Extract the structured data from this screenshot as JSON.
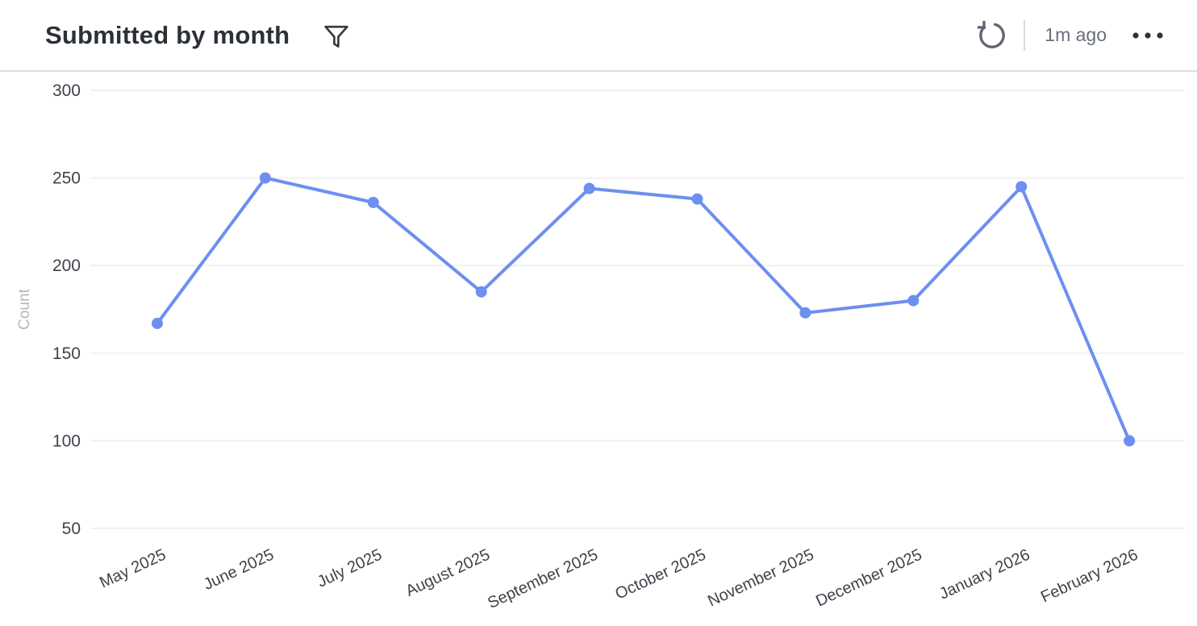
{
  "header": {
    "title": "Submitted by month",
    "refresh_time": "1m ago"
  },
  "colors": {
    "line": "#6c8ff0",
    "point": "#6c8ff0",
    "gridline": "#f1f1f4",
    "tick_label": "#3f434a",
    "axis_title": "#b2b6bf",
    "title_text": "#2c3037",
    "muted_text": "#6a6f7d",
    "icon_dark": "#33373e",
    "icon_gray": "#5f6573",
    "header_divider": "#dcdfe6"
  },
  "chart_data": {
    "type": "line",
    "title": "Submitted by month",
    "categories": [
      "May 2025",
      "June 2025",
      "July 2025",
      "August 2025",
      "September 2025",
      "October 2025",
      "November 2025",
      "December 2025",
      "January 2026",
      "February 2026"
    ],
    "values": [
      167,
      250,
      236,
      185,
      244,
      238,
      173,
      180,
      245,
      100
    ],
    "xlabel": "",
    "ylabel": "Count",
    "ylim": [
      50,
      300
    ],
    "yticks": [
      50,
      100,
      150,
      200,
      250,
      300
    ],
    "grid": true,
    "legend_position": "none",
    "x_label_rotation": -25,
    "marker": "circle"
  }
}
